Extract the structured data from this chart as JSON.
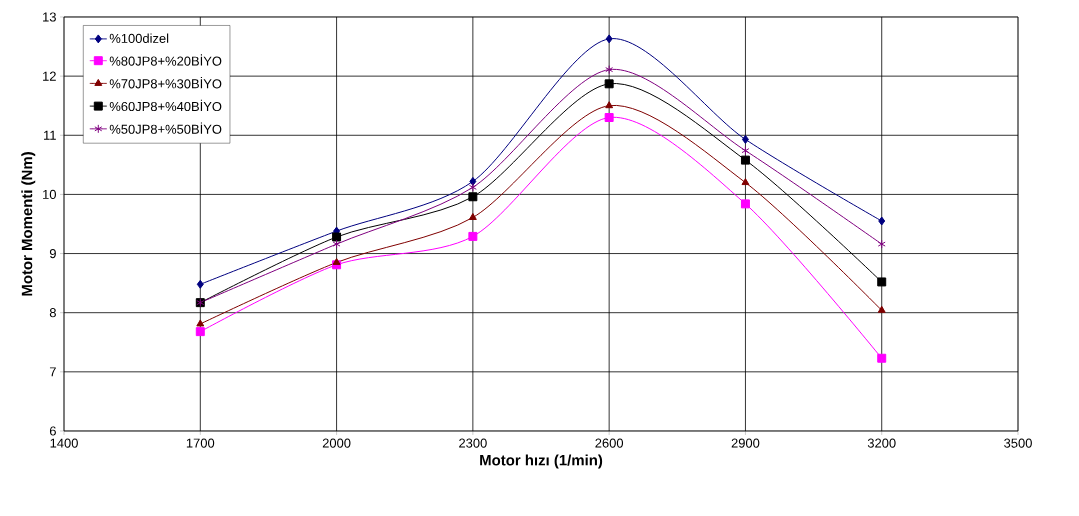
{
  "chart_data": {
    "type": "line",
    "xlabel": "Motor hızı (1/min)",
    "ylabel": "Motor Momenti (Nm)",
    "x": [
      1700,
      2000,
      2300,
      2600,
      2900,
      3200
    ],
    "series": [
      {
        "name": "%100dizel",
        "color": "#000080",
        "marker": "diamond",
        "values": [
          8.48,
          9.38,
          10.22,
          12.63,
          10.93,
          9.55
        ]
      },
      {
        "name": "%80JP8+%20BİYO",
        "color": "#ff00ff",
        "marker": "square",
        "values": [
          7.68,
          8.81,
          9.29,
          11.3,
          9.84,
          7.23
        ]
      },
      {
        "name": "%70JP8+%30BİYO",
        "color": "#800000",
        "marker": "triangle",
        "values": [
          7.81,
          8.85,
          9.61,
          11.5,
          10.2,
          8.04
        ]
      },
      {
        "name": "%60JP8+%40BİYO",
        "color": "#000000",
        "marker": "square",
        "values": [
          8.17,
          9.28,
          9.96,
          11.87,
          10.58,
          8.52
        ]
      },
      {
        "name": "%50JP8+%50BİYO",
        "color": "#800080",
        "marker": "cross",
        "values": [
          8.17,
          9.16,
          10.12,
          12.11,
          10.74,
          9.16
        ]
      }
    ],
    "xlim": [
      1400,
      3500
    ],
    "xticks": [
      1400,
      1700,
      2000,
      2300,
      2600,
      2900,
      3200,
      3500
    ],
    "ylim": [
      6,
      13
    ],
    "yticks": [
      6,
      7,
      8,
      9,
      10,
      11,
      12,
      13
    ],
    "grid": true,
    "legend": "top left",
    "line_style": "solid"
  }
}
